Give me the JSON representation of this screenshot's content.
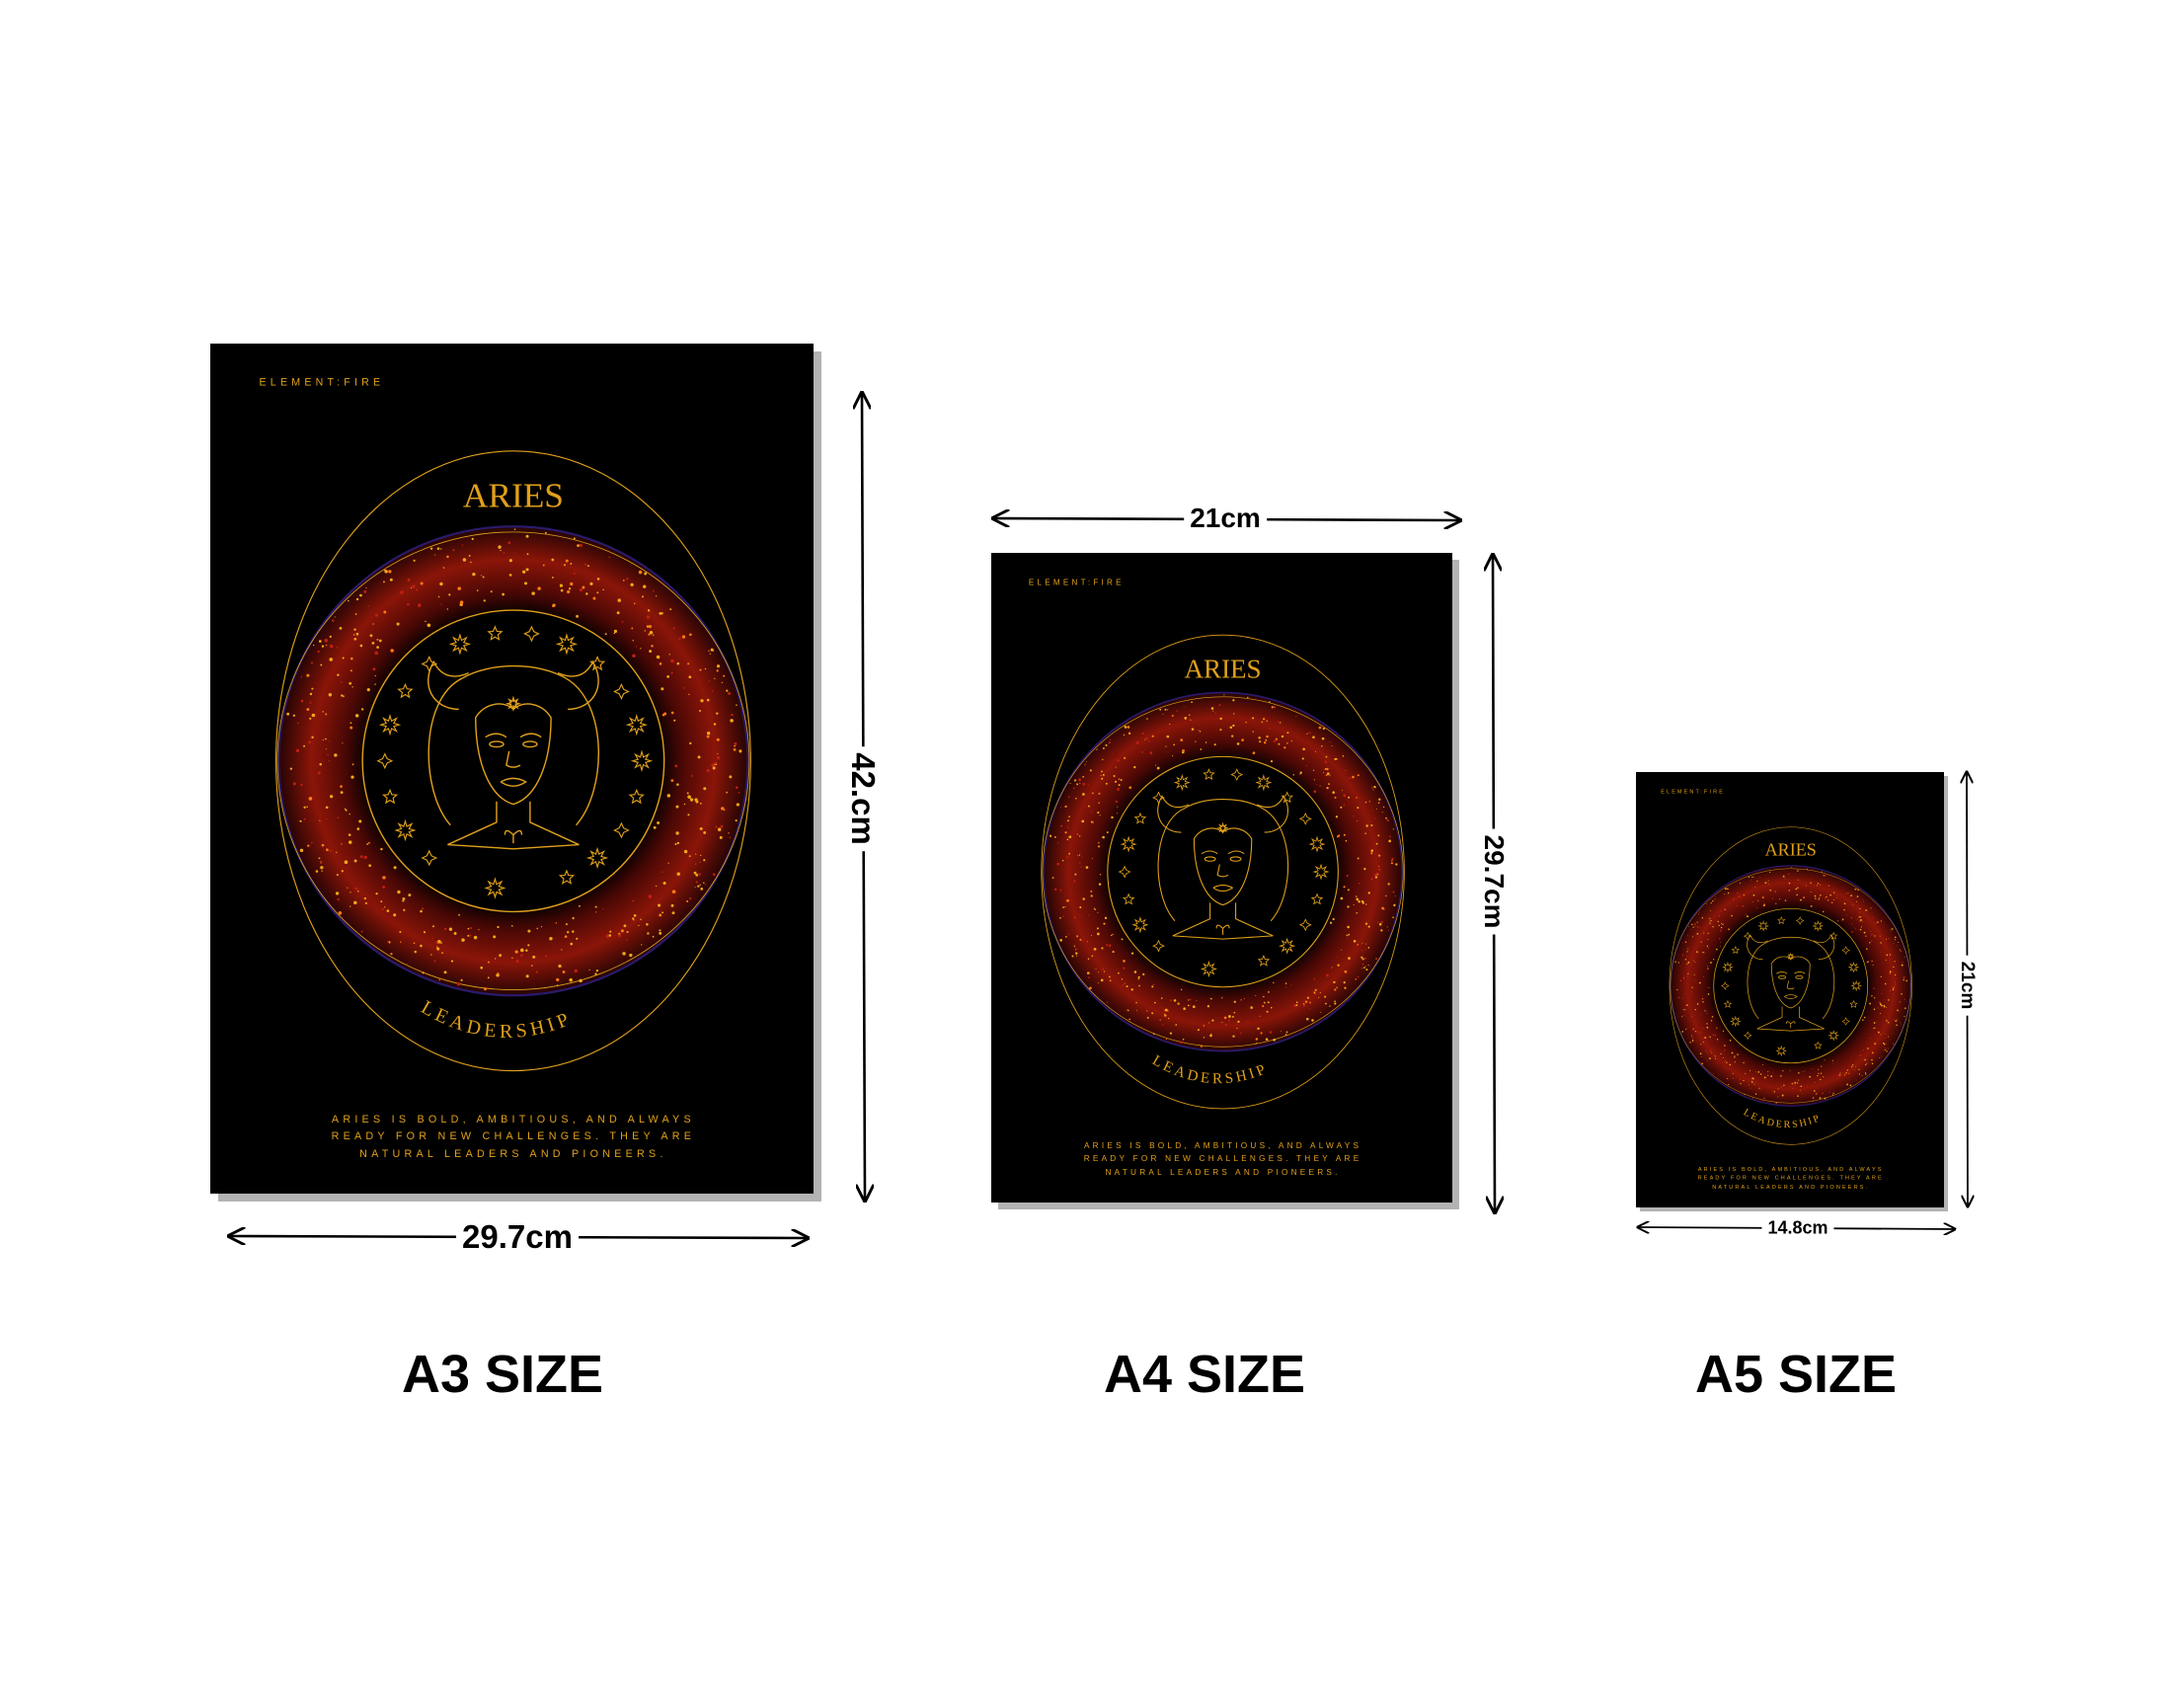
{
  "poster": {
    "element_label": "ELEMENT:FIRE",
    "title": "ARIES",
    "subtitle": "LEADERSHIP",
    "description": [
      "ARIES IS BOLD, AMBITIOUS, AND ALWAYS",
      "READY FOR NEW CHALLENGES. THEY ARE",
      "NATURAL LEADERS AND PIONEERS."
    ],
    "colors": {
      "background": "#000000",
      "gold": "#e0a01a",
      "ring_red": "#8b1508",
      "ring_edge": "#2a1a6a"
    }
  },
  "sizes": [
    {
      "name": "A3 SIZE",
      "width_label": "29.7cm",
      "height_label": "42.cm"
    },
    {
      "name": "A4 SIZE",
      "width_label": "21cm",
      "height_label": "29.7cm"
    },
    {
      "name": "A5 SIZE",
      "width_label": "14.8cm",
      "height_label": "21cm"
    }
  ]
}
